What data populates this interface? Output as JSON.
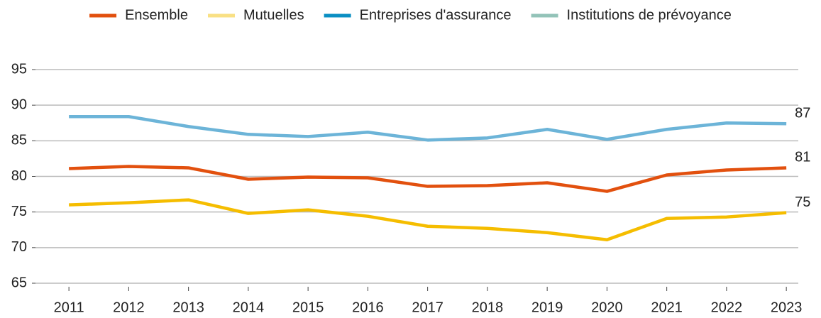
{
  "chart_data": {
    "type": "line",
    "x": [
      2011,
      2012,
      2013,
      2014,
      2015,
      2016,
      2017,
      2018,
      2019,
      2020,
      2021,
      2022,
      2023
    ],
    "series": [
      {
        "name": "Ensemble",
        "color": "#e2500e",
        "legend_color": "#e2500e",
        "values": [
          81.1,
          81.4,
          81.2,
          79.6,
          79.9,
          79.8,
          78.6,
          78.7,
          79.1,
          77.9,
          80.2,
          80.9,
          81.2
        ],
        "end_label": "81"
      },
      {
        "name": "Mutuelles",
        "color": "#f5bd00",
        "legend_color": "#f9e084",
        "values": [
          76.0,
          76.3,
          76.7,
          74.8,
          75.3,
          74.4,
          73.0,
          72.7,
          72.1,
          71.1,
          74.1,
          74.3,
          74.9
        ],
        "end_label": "75"
      },
      {
        "name": "Entreprises d'assurance",
        "color": "#6cb4d8",
        "legend_color": "#0a8fc3",
        "values": [
          88.4,
          88.4,
          87.0,
          85.9,
          85.6,
          86.2,
          85.1,
          85.4,
          86.6,
          85.2,
          86.6,
          87.5,
          87.4
        ],
        "end_label": "87"
      },
      {
        "name": "Institutions de prévoyance",
        "color": "#93c3b8",
        "legend_color": "#93c3b8",
        "values": [
          null,
          null,
          null,
          null,
          null,
          null,
          null,
          null,
          null,
          null,
          null,
          null,
          null
        ]
      }
    ],
    "xlim": [
      2010.5,
      2023.2
    ],
    "xticks": [
      2011,
      2012,
      2013,
      2014,
      2015,
      2016,
      2017,
      2018,
      2019,
      2020,
      2021,
      2022,
      2023
    ],
    "ylim": [
      65,
      95
    ],
    "yticks": [
      65,
      70,
      75,
      80,
      85,
      90,
      95
    ],
    "grid": true,
    "legend": "top"
  }
}
